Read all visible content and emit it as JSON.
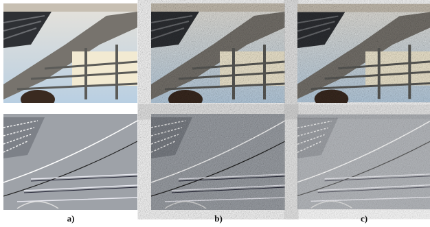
{
  "figure": {
    "labels": [
      "a)",
      "b)",
      "c)"
    ]
  }
}
